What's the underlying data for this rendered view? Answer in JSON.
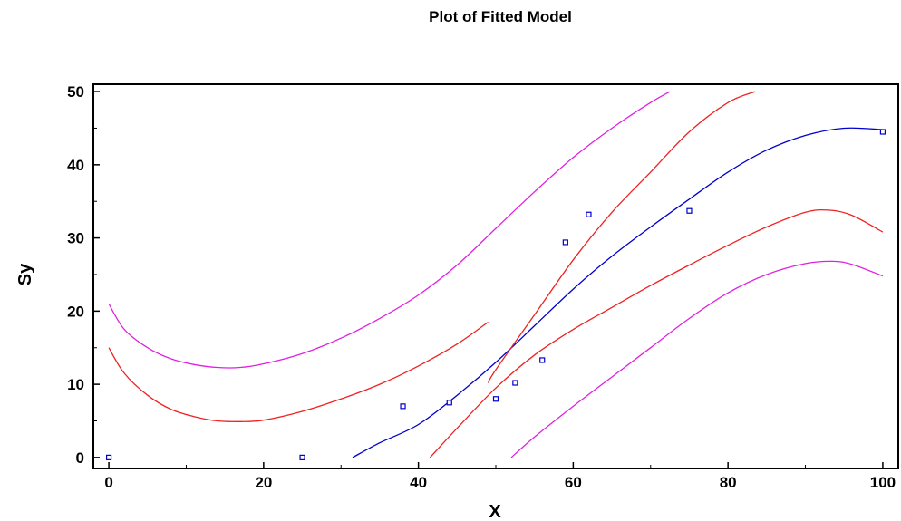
{
  "chart_data": {
    "type": "line",
    "title": "Plot of Fitted Model",
    "xlabel": "X",
    "ylabel": "Sy",
    "xlim": [
      -2,
      102
    ],
    "ylim": [
      -1.5,
      51
    ],
    "xticks": [
      0,
      20,
      40,
      60,
      80,
      100
    ],
    "yticks": [
      0,
      10,
      20,
      30,
      40,
      50
    ],
    "grid": false,
    "points": {
      "color": "#0000cc",
      "x": [
        0,
        25,
        38,
        44,
        50,
        52.5,
        56,
        59,
        62,
        75,
        100
      ],
      "y": [
        0,
        0,
        7,
        7.5,
        8,
        10.2,
        13.3,
        29.4,
        33.2,
        33.7,
        44.5
      ]
    },
    "series": [
      {
        "role": "fit",
        "color": "#0000cc",
        "x": [
          31.5,
          35,
          40,
          45,
          50,
          55,
          60,
          65,
          70,
          75,
          80,
          85,
          90,
          95,
          100
        ],
        "y": [
          0,
          2,
          4.5,
          8.5,
          13,
          18,
          23,
          27.5,
          31.5,
          35.3,
          39,
          42,
          44,
          45,
          44.8
        ]
      },
      {
        "role": "confidence-upper",
        "color": "#ee2222",
        "x": [
          49,
          50,
          55,
          60,
          65,
          70,
          75,
          80,
          83.5
        ],
        "y": [
          10.2,
          12,
          19.5,
          27,
          33.5,
          39,
          44.5,
          48.5,
          50
        ]
      },
      {
        "role": "confidence-lower",
        "color": "#ee2222",
        "x": [
          41.5,
          45,
          50,
          55,
          60,
          65,
          70,
          75,
          80,
          85,
          90,
          93,
          96,
          100
        ],
        "y": [
          0,
          4,
          9.5,
          14,
          17.5,
          20.5,
          23.5,
          26.3,
          29,
          31.5,
          33.5,
          33.8,
          33.1,
          30.8
        ]
      },
      {
        "role": "lower-branch",
        "color": "#ee2222",
        "x": [
          0,
          2,
          5,
          8,
          11,
          14,
          17,
          20,
          25,
          30,
          35,
          40,
          45,
          49
        ],
        "y": [
          15,
          11.5,
          8.5,
          6.6,
          5.6,
          5,
          4.9,
          5.1,
          6.3,
          8,
          10,
          12.5,
          15.5,
          18.5
        ]
      },
      {
        "role": "prediction-upper",
        "color": "#e020e0",
        "x": [
          0,
          2,
          5,
          8,
          11,
          14,
          17,
          20,
          25,
          30,
          35,
          40,
          45,
          50,
          55,
          60,
          65,
          70,
          72.5
        ],
        "y": [
          21,
          17.5,
          15,
          13.5,
          12.7,
          12.3,
          12.3,
          12.8,
          14.2,
          16.3,
          19,
          22.2,
          26.3,
          31.3,
          36.3,
          41,
          45,
          48.5,
          50
        ]
      },
      {
        "role": "prediction-lower",
        "color": "#e020e0",
        "x": [
          52,
          55,
          60,
          65,
          70,
          75,
          80,
          85,
          90,
          93.5,
          96,
          100
        ],
        "y": [
          0,
          2.8,
          7,
          11,
          15,
          19,
          22.5,
          25,
          26.5,
          26.8,
          26.4,
          24.8
        ]
      }
    ]
  }
}
